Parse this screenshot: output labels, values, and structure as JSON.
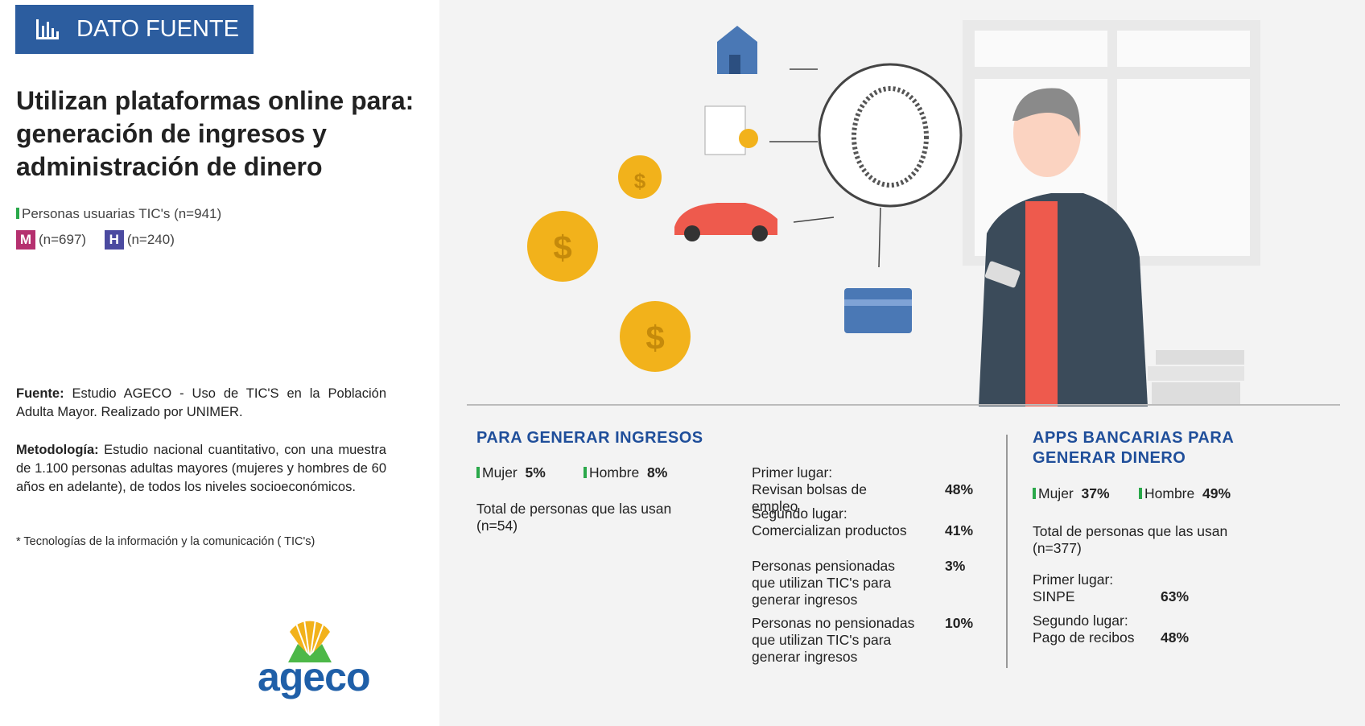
{
  "header": {
    "badge": "DATO FUENTE",
    "title": "Utilizan plataformas online para: generación de ingresos y administración de dinero",
    "users": "Personas usuarias TIC's (n=941)",
    "women": {
      "letter": "M",
      "n": "(n=697)"
    },
    "men": {
      "letter": "H",
      "n": "(n=240)"
    }
  },
  "notes": {
    "source": {
      "label": "Fuente:",
      "text": "Estudio AGECO - Uso de TIC'S en la Población Adulta Mayor. Realizado por UNIMER."
    },
    "method": {
      "label": "Metodología:",
      "text": "Estudio nacional cuantitativo, con una muestra de 1.100 personas adultas mayores (mujeres y hombres de 60 años en adelante), de todos los niveles socioeconómicos."
    },
    "footnote": "* Tecnologías de la información y la comunicación ( TIC's)",
    "logo": "ageco"
  },
  "income": {
    "heading": "PARA GENERAR INGRESOS",
    "women": {
      "label": "Mujer",
      "value": "5%"
    },
    "men": {
      "label": "Hombre",
      "value": "8%"
    },
    "total": "Total de personas que las usan (n=54)",
    "items": [
      {
        "title": "Primer lugar:",
        "text": "Revisan bolsas de empleo",
        "value": "48%"
      },
      {
        "title": "Segundo lugar:",
        "text": "Comercializan productos",
        "value": "41%"
      },
      {
        "text": "Personas pensionadas que utilizan TIC's para generar ingresos",
        "value": "3%"
      },
      {
        "text": "Personas no pensionadas que utilizan TIC's para generar ingresos",
        "value": "10%"
      }
    ]
  },
  "banking": {
    "heading": "APPS BANCARIAS PARA GENERAR DINERO",
    "women": {
      "label": "Mujer",
      "value": "37%"
    },
    "men": {
      "label": "Hombre",
      "value": "49%"
    },
    "total": "Total de personas que las usan (n=377)",
    "items": [
      {
        "title": "Primer lugar:",
        "text": "SINPE",
        "value": "63%"
      },
      {
        "title": "Segundo lugar:",
        "text": "Pago de recibos",
        "value": "48%"
      }
    ]
  }
}
